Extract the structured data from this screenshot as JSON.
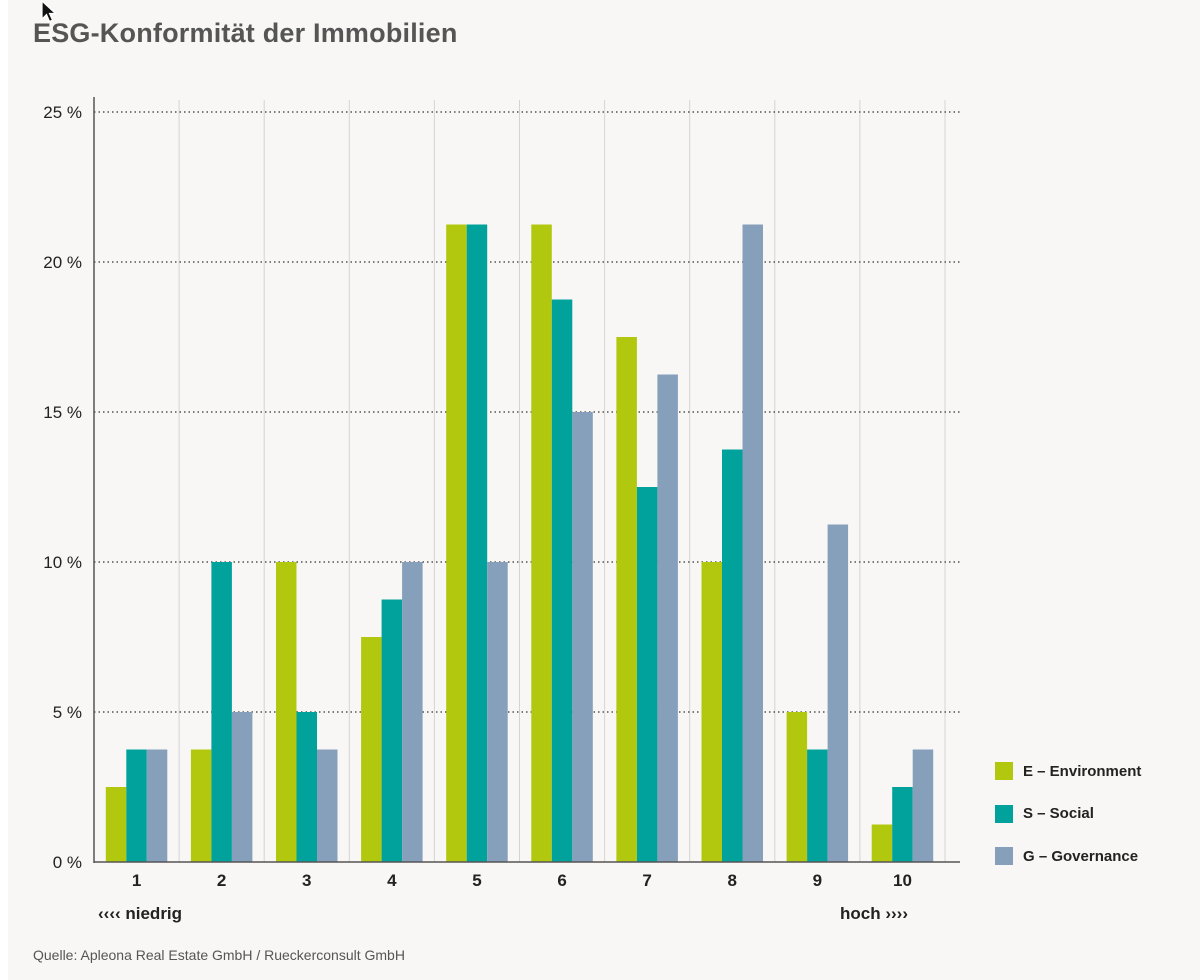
{
  "title": "ESG-Konformität der Immobilien",
  "source": "Quelle: Apleona Real Estate GmbH / Rueckerconsult GmbH",
  "scale": {
    "low_label": "‹‹‹‹ niedrig",
    "high_label": "hoch ››››"
  },
  "colors": {
    "background": "#f8f7f5",
    "environment": "#b1c80e",
    "social": "#00a29b",
    "governance": "#869fbb"
  },
  "chart_data": {
    "type": "bar",
    "title": "ESG-Konformität der Immobilien",
    "categories": [
      "1",
      "2",
      "3",
      "4",
      "5",
      "6",
      "7",
      "8",
      "9",
      "10"
    ],
    "ylim": [
      0,
      25
    ],
    "yticks": [
      "0 %",
      "5 %",
      "10 %",
      "15 %",
      "20 %",
      "25 %"
    ],
    "ytick_values": [
      0,
      5,
      10,
      15,
      20,
      25
    ],
    "grid": "dotted horizontal, solid vertical separators",
    "legend_position": "right-bottom",
    "series": [
      {
        "name": "E – Environment",
        "color": "#b1c80e",
        "values": [
          2.5,
          3.75,
          10,
          7.5,
          21.25,
          21.25,
          17.5,
          10,
          5,
          1.25
        ]
      },
      {
        "name": "S – Social",
        "color": "#00a29b",
        "values": [
          3.75,
          10,
          5,
          8.75,
          21.25,
          18.75,
          12.5,
          13.75,
          3.75,
          2.5
        ]
      },
      {
        "name": "G – Governance",
        "color": "#869fbb",
        "values": [
          3.75,
          5,
          3.75,
          10,
          10,
          15,
          16.25,
          21.25,
          11.25,
          3.75
        ]
      }
    ]
  }
}
